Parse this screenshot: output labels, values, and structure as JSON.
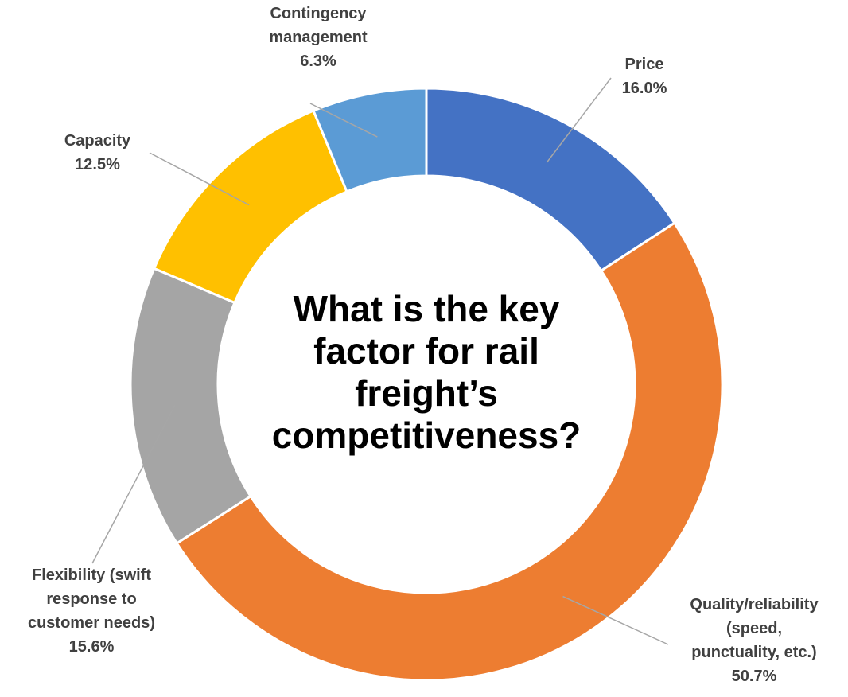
{
  "chart_data": {
    "type": "pie",
    "variant": "donut",
    "title": "What is the key\nfactor for rail\nfreight’s\ncompetitiveness?",
    "slices": [
      {
        "label": "Price",
        "value": 16.0,
        "value_label": "16.0%",
        "color": "#4472C4"
      },
      {
        "label": "Quality/reliability\n(speed,\npunctuality, etc.)",
        "value": 50.7,
        "value_label": "50.7%",
        "color": "#ED7D31"
      },
      {
        "label": "Flexibility (swift\nresponse to\ncustomer needs)",
        "value": 15.6,
        "value_label": "15.6%",
        "color": "#A5A5A5"
      },
      {
        "label": "Capacity",
        "value": 12.5,
        "value_label": "12.5%",
        "color": "#FFC000"
      },
      {
        "label": "Contingency\nmanagement",
        "value": 6.3,
        "value_label": "6.3%",
        "color": "#5B9BD5"
      }
    ],
    "legend": "none"
  }
}
